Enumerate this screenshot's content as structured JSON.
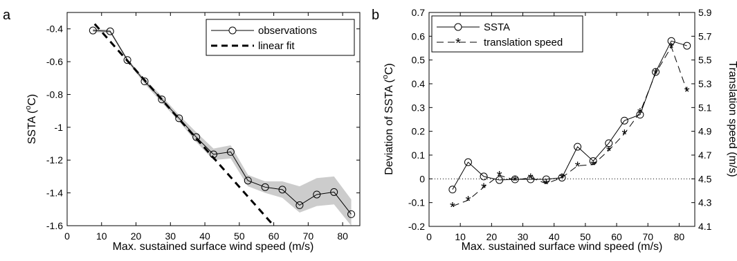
{
  "chart_data": [
    {
      "type": "line",
      "panel_label": "a",
      "xlabel": "Max. sustained surface wind speed (m/s)",
      "ylabel_main": "SSTA (",
      "ylabel_sup": "o",
      "ylabel_end": "C)",
      "xlim": [
        0,
        85
      ],
      "ylim": [
        -1.6,
        -0.3
      ],
      "xticks": [
        0,
        10,
        20,
        30,
        40,
        50,
        60,
        70,
        80
      ],
      "yticks": [
        -1.6,
        -1.4,
        -1.2,
        -1.0,
        -0.8,
        -0.6,
        -0.4
      ],
      "ytick_labels": [
        "-1.6",
        "-1.4",
        "-1.2",
        "-1",
        "-0.8",
        "-0.6",
        "-0.4"
      ],
      "grid": false,
      "legend_position": "top-right",
      "series": [
        {
          "name": "observations",
          "style": "solid-circle",
          "x": [
            7.5,
            12.5,
            17.5,
            22.5,
            27.5,
            32.5,
            37.5,
            42.5,
            47.5,
            52.5,
            57.5,
            62.5,
            67.5,
            72.5,
            77.5,
            82.5
          ],
          "y": [
            -0.41,
            -0.415,
            -0.59,
            -0.72,
            -0.83,
            -0.945,
            -1.06,
            -1.165,
            -1.15,
            -1.325,
            -1.365,
            -1.38,
            -1.475,
            -1.41,
            -1.395,
            -1.53
          ]
        },
        {
          "name": "linear fit",
          "style": "dashed",
          "x": [
            8,
            60
          ],
          "y": [
            -0.37,
            -1.6
          ]
        }
      ],
      "confidence_band": {
        "x": [
          7.5,
          12.5,
          17.5,
          22.5,
          27.5,
          32.5,
          37.5,
          42.5,
          47.5,
          52.5,
          57.5,
          62.5,
          67.5,
          72.5,
          77.5,
          82.5
        ],
        "lower": [
          -0.42,
          -0.425,
          -0.6,
          -0.735,
          -0.85,
          -0.965,
          -1.09,
          -1.2,
          -1.19,
          -1.36,
          -1.4,
          -1.43,
          -1.52,
          -1.48,
          -1.47,
          -1.6
        ],
        "upper": [
          -0.4,
          -0.405,
          -0.58,
          -0.705,
          -0.81,
          -0.925,
          -1.03,
          -1.13,
          -1.11,
          -1.29,
          -1.33,
          -1.33,
          -1.36,
          -1.31,
          -1.3,
          -1.44
        ]
      }
    },
    {
      "type": "line",
      "panel_label": "b",
      "xlabel": "Max. sustained surface wind speed (m/s)",
      "ylabel_main": "Deviation of SSTA (",
      "ylabel_sup": "o",
      "ylabel_end": "C)",
      "y2label": "Translation speed (m/s)",
      "xlim": [
        0,
        85
      ],
      "ylim": [
        -0.2,
        0.7
      ],
      "y2lim": [
        4.1,
        5.9
      ],
      "xticks": [
        0,
        10,
        20,
        30,
        40,
        50,
        60,
        70,
        80
      ],
      "yticks": [
        -0.2,
        -0.1,
        0,
        0.1,
        0.2,
        0.3,
        0.4,
        0.5,
        0.6,
        0.7
      ],
      "ytick_labels": [
        "-0.2",
        "-0.1",
        "0",
        "0.1",
        "0.2",
        "0.3",
        "0.4",
        "0.5",
        "0.6",
        "0.7"
      ],
      "y2ticks": [
        4.1,
        4.3,
        4.5,
        4.7,
        4.9,
        5.1,
        5.3,
        5.5,
        5.7,
        5.9
      ],
      "y2tick_labels": [
        "4.1",
        "4.3",
        "4.5",
        "4.7",
        "4.9",
        "5.1",
        "5.3",
        "5.5",
        "5.7",
        "5.9"
      ],
      "zero_reference_line": "dotted",
      "grid": false,
      "legend_position": "top-left",
      "series": [
        {
          "name": "SSTA",
          "axis": "left",
          "style": "solid-circle",
          "x": [
            7.5,
            12.5,
            17.5,
            22.5,
            27.5,
            32.5,
            37.5,
            42.5,
            47.5,
            52.5,
            57.5,
            62.5,
            67.5,
            72.5,
            77.5,
            82.5
          ],
          "y": [
            -0.045,
            0.07,
            0.01,
            -0.005,
            -0.002,
            -0.002,
            -0.002,
            0.005,
            0.135,
            0.075,
            0.15,
            0.245,
            0.27,
            0.45,
            0.58,
            0.56
          ]
        },
        {
          "name": "translation speed",
          "axis": "right",
          "style": "dashed-star",
          "x": [
            7.5,
            12.5,
            17.5,
            22.5,
            27.5,
            32.5,
            37.5,
            42.5,
            47.5,
            52.5,
            57.5,
            62.5,
            67.5,
            72.5,
            77.5,
            82.5
          ],
          "y": [
            4.27,
            4.32,
            4.43,
            4.53,
            4.49,
            4.51,
            4.46,
            4.51,
            4.61,
            4.62,
            4.74,
            4.88,
            5.06,
            5.39,
            5.61,
            5.24
          ]
        }
      ]
    }
  ]
}
